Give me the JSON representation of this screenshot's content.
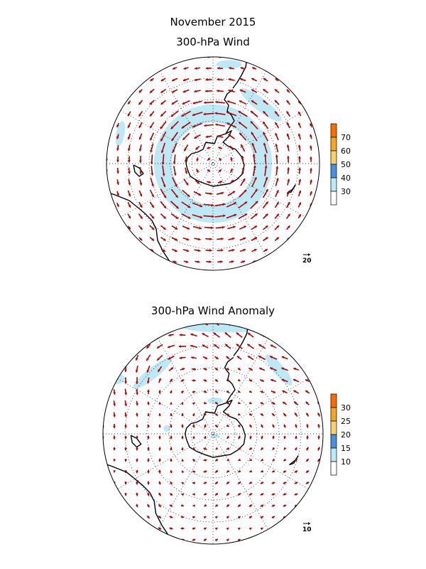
{
  "titles": {
    "main": "November 2015",
    "wind": "300-hPa Wind",
    "anomaly": "300-hPa Wind Anomaly"
  },
  "colors": {
    "arrow": "#b00000",
    "shade_low": "#bde9f6",
    "shade_mid": "#4a90e2",
    "shade_high_1": "#f5a623",
    "shade_high_2": "#ff6a00",
    "coast": "#000000",
    "grid": "#000000"
  },
  "panels": {
    "wind": {
      "colorbar": {
        "labels": [
          "70",
          "60",
          "50",
          "40",
          "30"
        ],
        "colors": [
          "#ff6a00",
          "#f5a623",
          "#f8d070",
          "#4a90e2",
          "#bde9f6",
          "#ffffff"
        ]
      },
      "reference_vector": "20",
      "shaded_threshold_label": "30"
    },
    "anomaly": {
      "colorbar": {
        "labels": [
          "30",
          "25",
          "20",
          "15",
          "10"
        ],
        "colors": [
          "#ff6a00",
          "#f5a623",
          "#f8d070",
          "#4a90e2",
          "#bde9f6",
          "#ffffff"
        ]
      },
      "reference_vector": "10",
      "shaded_threshold_label": "10"
    }
  }
}
